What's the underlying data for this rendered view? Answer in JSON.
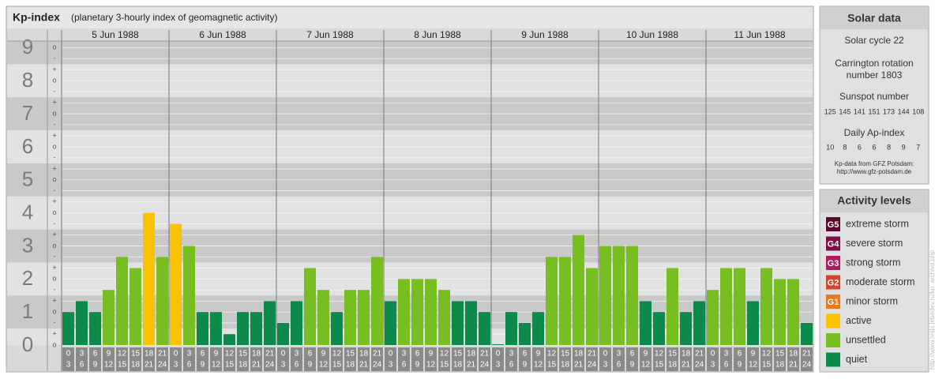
{
  "chart_data": {
    "type": "bar",
    "title": "Kp-index",
    "subtitle": "(planetary 3-hourly index of geomagnetic activity)",
    "days": [
      "5 Jun 1988",
      "6 Jun 1988",
      "7 Jun 1988",
      "8 Jun 1988",
      "9 Jun 1988",
      "10 Jun 1988",
      "11 Jun 1988"
    ],
    "hours": [
      [
        "0",
        "3"
      ],
      [
        "3",
        "6"
      ],
      [
        "6",
        "9"
      ],
      [
        "9",
        "12"
      ],
      [
        "12",
        "15"
      ],
      [
        "15",
        "18"
      ],
      [
        "18",
        "21"
      ],
      [
        "21",
        "24"
      ]
    ],
    "values": [
      1,
      1.33,
      1,
      1.67,
      2.67,
      2.33,
      4,
      2.67,
      3.67,
      3,
      1,
      1,
      0.33,
      1,
      1,
      1.33,
      0.67,
      1.33,
      2.33,
      1.67,
      1,
      1.67,
      1.67,
      2.67,
      1.33,
      2,
      2,
      2,
      1.67,
      1.33,
      1.33,
      1,
      0,
      1,
      0.67,
      1,
      2.67,
      2.67,
      3.33,
      2.33,
      3,
      3,
      3,
      1.33,
      1,
      2.33,
      1,
      1.33,
      1.67,
      2.33,
      2.33,
      1.33,
      2.33,
      2,
      2,
      0.67
    ],
    "colors": [
      "#0b8a4b",
      "#0b8a4b",
      "#0b8a4b",
      "#78be20",
      "#78be20",
      "#78be20",
      "#f9c300",
      "#78be20",
      "#f9c300",
      "#78be20",
      "#0b8a4b",
      "#0b8a4b",
      "#0b8a4b",
      "#0b8a4b",
      "#0b8a4b",
      "#0b8a4b",
      "#0b8a4b",
      "#0b8a4b",
      "#78be20",
      "#78be20",
      "#0b8a4b",
      "#78be20",
      "#78be20",
      "#78be20",
      "#0b8a4b",
      "#78be20",
      "#78be20",
      "#78be20",
      "#78be20",
      "#0b8a4b",
      "#0b8a4b",
      "#0b8a4b",
      "#0b8a4b",
      "#0b8a4b",
      "#0b8a4b",
      "#0b8a4b",
      "#78be20",
      "#78be20",
      "#78be20",
      "#78be20",
      "#78be20",
      "#78be20",
      "#78be20",
      "#0b8a4b",
      "#0b8a4b",
      "#78be20",
      "#0b8a4b",
      "#0b8a4b",
      "#78be20",
      "#78be20",
      "#78be20",
      "#0b8a4b",
      "#78be20",
      "#78be20",
      "#78be20",
      "#0b8a4b"
    ],
    "ylim": [
      0,
      9.2
    ],
    "yticks": [
      0,
      1,
      2,
      3,
      4,
      5,
      6,
      7,
      8,
      9
    ],
    "minor_yticks": [
      {
        "value": 9,
        "label": "o"
      },
      {
        "value": 8.67,
        "label": "-"
      },
      {
        "value": 8.33,
        "label": "+"
      },
      {
        "value": 8,
        "label": "o"
      },
      {
        "value": 7.67,
        "label": "-"
      },
      {
        "value": 7.33,
        "label": "+"
      },
      {
        "value": 7,
        "label": "o"
      },
      {
        "value": 6.67,
        "label": "-"
      },
      {
        "value": 6.33,
        "label": "+"
      },
      {
        "value": 6,
        "label": "o"
      },
      {
        "value": 5.67,
        "label": "-"
      },
      {
        "value": 5.33,
        "label": "+"
      },
      {
        "value": 5,
        "label": "o"
      },
      {
        "value": 4.67,
        "label": "-"
      },
      {
        "value": 4.33,
        "label": "+"
      },
      {
        "value": 4,
        "label": "o"
      },
      {
        "value": 3.67,
        "label": "-"
      },
      {
        "value": 3.33,
        "label": "+"
      },
      {
        "value": 3,
        "label": "o"
      },
      {
        "value": 2.67,
        "label": "-"
      },
      {
        "value": 2.33,
        "label": "+"
      },
      {
        "value": 2,
        "label": "o"
      },
      {
        "value": 1.67,
        "label": "-"
      },
      {
        "value": 1.33,
        "label": "+"
      },
      {
        "value": 1,
        "label": "o"
      },
      {
        "value": 0.67,
        "label": "-"
      },
      {
        "value": 0.33,
        "label": "+"
      },
      {
        "value": 0,
        "label": "o"
      }
    ]
  },
  "solar_data": {
    "title": "Solar data",
    "cycle": "Solar cycle 22",
    "carrington": [
      "Carrington rotation",
      "number 1803"
    ],
    "sunspot_title": "Sunspot number",
    "sunspot": [
      125,
      145,
      141,
      151,
      173,
      144,
      108
    ],
    "ap_title": "Daily Ap-index",
    "ap": [
      10,
      8,
      6,
      6,
      8,
      9,
      7
    ],
    "credit": [
      "Kp-data from GFZ Potsdam:",
      "http://www.gfz-potsdam.de"
    ]
  },
  "activity_levels": {
    "title": "Activity levels",
    "items": [
      {
        "badge": "G5",
        "label": "extreme storm",
        "color": "#5a0a2c"
      },
      {
        "badge": "G4",
        "label": "severe storm",
        "color": "#7c1046"
      },
      {
        "badge": "G3",
        "label": "strong storm",
        "color": "#b3195e"
      },
      {
        "badge": "G2",
        "label": "moderate storm",
        "color": "#d8442a"
      },
      {
        "badge": "G1",
        "label": "minor storm",
        "color": "#e57a1f"
      },
      {
        "label": "active",
        "color": "#f9c300"
      },
      {
        "label": "unsettled",
        "color": "#78be20"
      },
      {
        "label": "quiet",
        "color": "#0b8a4b"
      }
    ]
  },
  "watermark": "http://www.tesis.lebedev.ru/kp_archive.php"
}
